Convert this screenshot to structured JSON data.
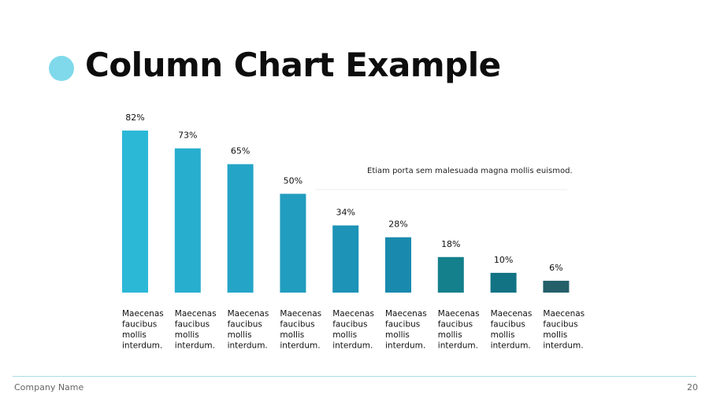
{
  "slide": {
    "title": "Column Chart Example",
    "annotation": "Etiam porta sem malesuada magna mollis euismod.",
    "company": "Company Name",
    "page_number": "20"
  },
  "colors": {
    "title_dot": "#7fd9ea",
    "bars": [
      "#2bb8d6",
      "#27aecf",
      "#24a5c7",
      "#219dbf",
      "#1d93b7",
      "#198aad",
      "#14808c",
      "#117384",
      "#245f6a"
    ]
  },
  "chart_data": {
    "type": "bar",
    "categories": [
      "Maecenas faucibus mollis interdum.",
      "Maecenas faucibus mollis interdum.",
      "Maecenas faucibus mollis interdum.",
      "Maecenas faucibus mollis interdum.",
      "Maecenas faucibus mollis interdum.",
      "Maecenas faucibus mollis interdum.",
      "Maecenas faucibus mollis interdum.",
      "Maecenas faucibus mollis interdum.",
      "Maecenas faucibus mollis interdum."
    ],
    "category_lines": [
      [
        "Maecenas",
        "faucibus",
        "mollis",
        "interdum."
      ],
      [
        "Maecenas",
        "faucibus",
        "mollis",
        "interdum."
      ],
      [
        "Maecenas",
        "faucibus",
        "mollis",
        "interdum."
      ],
      [
        "Maecenas",
        "faucibus",
        "mollis",
        "interdum."
      ],
      [
        "Maecenas",
        "faucibus",
        "mollis",
        "interdum."
      ],
      [
        "Maecenas",
        "faucibus",
        "mollis",
        "interdum."
      ],
      [
        "Maecenas",
        "faucibus",
        "mollis",
        "interdum."
      ],
      [
        "Maecenas",
        "faucibus",
        "mollis",
        "interdum."
      ],
      [
        "Maecenas",
        "faucibus",
        "mollis",
        "interdum."
      ]
    ],
    "values": [
      82,
      73,
      65,
      50,
      34,
      28,
      18,
      10,
      6
    ],
    "value_labels": [
      "82%",
      "73%",
      "65%",
      "50%",
      "34%",
      "28%",
      "18%",
      "10%",
      "6%"
    ],
    "title": "",
    "xlabel": "",
    "ylabel": "",
    "ylim": [
      0,
      82
    ],
    "grid": false,
    "legend": "none"
  }
}
